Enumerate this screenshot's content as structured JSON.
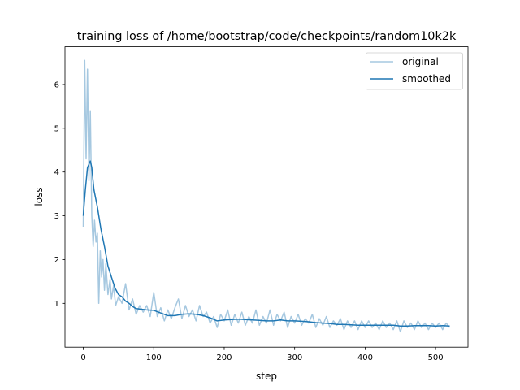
{
  "chart_data": {
    "type": "line",
    "title": "training loss of /home/bootstrap/code/checkpoints/random10k2k",
    "xlabel": "step",
    "ylabel": "loss",
    "xlim": [
      -26,
      546
    ],
    "ylim": [
      0,
      6.86
    ],
    "xticks": [
      0,
      100,
      200,
      300,
      400,
      500
    ],
    "yticks": [
      1,
      2,
      3,
      4,
      5,
      6
    ],
    "grid": false,
    "legend_position": "top-right",
    "series": [
      {
        "name": "original",
        "color": "#a6c8e0",
        "x": [
          0,
          2,
          4,
          6,
          8,
          10,
          12,
          14,
          16,
          18,
          20,
          22,
          24,
          26,
          28,
          30,
          32,
          35,
          38,
          40,
          43,
          46,
          50,
          55,
          60,
          65,
          70,
          75,
          80,
          85,
          90,
          95,
          100,
          105,
          110,
          115,
          120,
          125,
          130,
          135,
          140,
          145,
          150,
          155,
          160,
          165,
          170,
          175,
          180,
          185,
          190,
          195,
          200,
          205,
          210,
          215,
          220,
          225,
          230,
          235,
          240,
          245,
          250,
          255,
          260,
          265,
          270,
          275,
          280,
          285,
          290,
          295,
          300,
          305,
          310,
          315,
          320,
          325,
          330,
          335,
          340,
          345,
          350,
          355,
          360,
          365,
          370,
          375,
          380,
          385,
          390,
          395,
          400,
          405,
          410,
          415,
          420,
          425,
          430,
          435,
          440,
          445,
          450,
          455,
          460,
          465,
          470,
          475,
          480,
          485,
          490,
          495,
          500,
          505,
          510,
          515,
          520
        ],
        "y": [
          2.75,
          6.55,
          4.3,
          6.35,
          3.8,
          5.4,
          3.0,
          2.3,
          2.9,
          2.4,
          2.6,
          1.0,
          2.2,
          1.6,
          2.0,
          1.3,
          1.9,
          1.2,
          1.55,
          1.1,
          1.4,
          0.95,
          1.15,
          1.0,
          1.45,
          0.85,
          1.1,
          0.75,
          0.95,
          0.8,
          0.95,
          0.7,
          1.25,
          0.7,
          0.9,
          0.6,
          0.85,
          0.65,
          0.9,
          1.1,
          0.65,
          0.95,
          0.7,
          0.85,
          0.6,
          0.95,
          0.7,
          0.8,
          0.55,
          0.7,
          0.45,
          0.75,
          0.6,
          0.85,
          0.5,
          0.75,
          0.55,
          0.8,
          0.5,
          0.7,
          0.55,
          0.85,
          0.5,
          0.7,
          0.55,
          0.85,
          0.5,
          0.75,
          0.6,
          0.8,
          0.45,
          0.7,
          0.55,
          0.75,
          0.5,
          0.65,
          0.55,
          0.75,
          0.45,
          0.65,
          0.5,
          0.7,
          0.45,
          0.6,
          0.5,
          0.65,
          0.4,
          0.6,
          0.45,
          0.6,
          0.4,
          0.6,
          0.45,
          0.6,
          0.45,
          0.55,
          0.4,
          0.6,
          0.45,
          0.55,
          0.4,
          0.6,
          0.35,
          0.6,
          0.45,
          0.55,
          0.4,
          0.6,
          0.45,
          0.55,
          0.4,
          0.55,
          0.45,
          0.55,
          0.4,
          0.55,
          0.45
        ]
      },
      {
        "name": "smoothed",
        "color": "#1f77b4",
        "x": [
          0,
          3,
          6,
          10,
          12,
          15,
          20,
          25,
          30,
          35,
          40,
          45,
          50,
          55,
          60,
          65,
          70,
          75,
          80,
          90,
          100,
          110,
          120,
          130,
          140,
          150,
          160,
          170,
          180,
          190,
          200,
          210,
          220,
          230,
          240,
          250,
          260,
          270,
          280,
          290,
          300,
          310,
          320,
          330,
          340,
          350,
          360,
          370,
          380,
          390,
          400,
          410,
          420,
          430,
          440,
          450,
          460,
          470,
          480,
          490,
          500,
          510,
          520
        ],
        "y": [
          3.0,
          3.6,
          4.1,
          4.25,
          4.1,
          3.6,
          3.2,
          2.7,
          2.3,
          1.85,
          1.6,
          1.35,
          1.2,
          1.15,
          1.05,
          1.0,
          0.93,
          0.88,
          0.87,
          0.85,
          0.84,
          0.78,
          0.72,
          0.72,
          0.75,
          0.76,
          0.75,
          0.72,
          0.67,
          0.6,
          0.62,
          0.63,
          0.64,
          0.63,
          0.62,
          0.61,
          0.6,
          0.6,
          0.62,
          0.6,
          0.6,
          0.59,
          0.58,
          0.56,
          0.55,
          0.54,
          0.52,
          0.52,
          0.51,
          0.5,
          0.5,
          0.5,
          0.5,
          0.5,
          0.5,
          0.48,
          0.48,
          0.49,
          0.49,
          0.49,
          0.48,
          0.49,
          0.48
        ]
      }
    ]
  }
}
